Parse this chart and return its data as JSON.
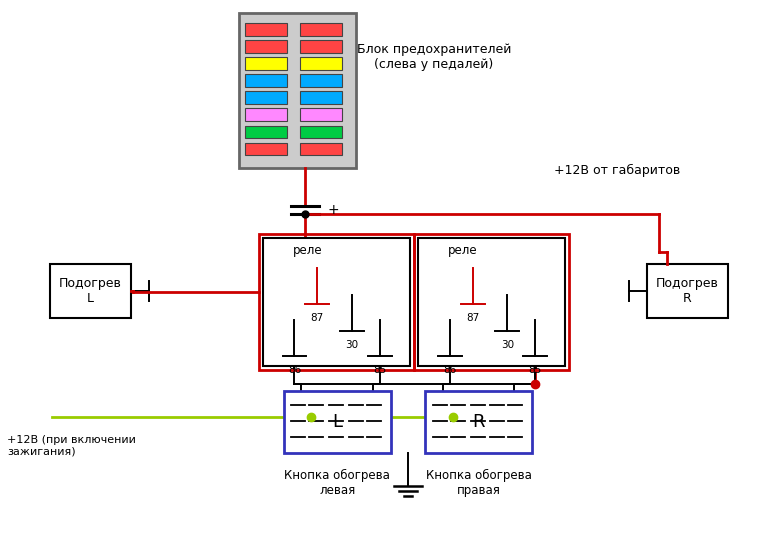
{
  "bg_color": "#ffffff",
  "fuse_box_label": "Блок предохранителей\n(слева у педалей)",
  "plus12v_label": "+12В от габаритов",
  "ignition_label": "+12В (при включении\nзажигания)",
  "relay_label": "реле",
  "left_heat_label": "Подогрев\nL",
  "right_heat_label": "Подогрев\nR",
  "btn_left_label": "Кнопка обогрева\nлевая",
  "btn_right_label": "Кнопка обогрева\nправая",
  "btn_left_text": "L",
  "btn_right_text": "R",
  "red_color": "#cc0000",
  "black_color": "#000000",
  "green_color": "#99cc00",
  "blue_color": "#3333bb",
  "gray_color": "#888888",
  "fuse_colors": [
    "#ff4444",
    "#ff4444",
    "#ffff00",
    "#00aaff",
    "#00aaff",
    "#ff88ff",
    "#00cc44",
    "#ff4444"
  ]
}
